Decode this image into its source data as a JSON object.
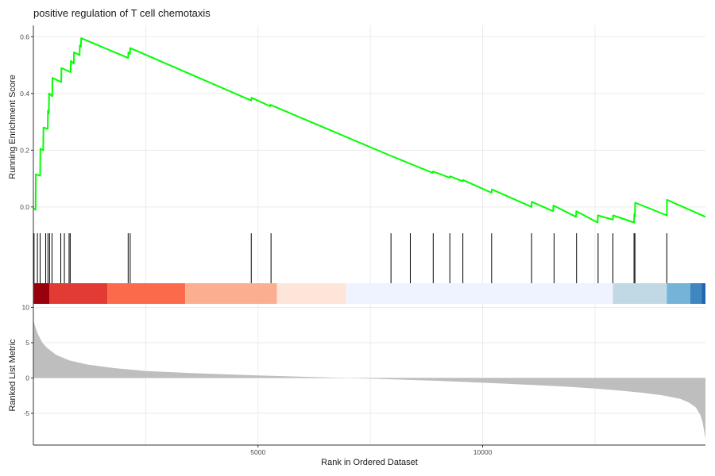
{
  "chart_data": {
    "type": "line",
    "title": "positive regulation of T cell chemotaxis",
    "xlabel": "Rank in Ordered Dataset",
    "x_ticks": [
      5000,
      10000
    ],
    "xlim": [
      0,
      14960
    ],
    "colors": {
      "running_score": "#00ff00",
      "hit_line": "#000000",
      "metric_fill": "#bebebe",
      "grid": "#ebebeb",
      "axis": "#333333"
    },
    "panels": {
      "running_enrichment": {
        "ylabel": "Running Enrichment Score",
        "y_ticks": [
          0.0,
          0.2,
          0.4,
          0.6
        ],
        "y_tick_labels": [
          "0.0",
          "0.2",
          "0.4",
          "0.6"
        ],
        "ylim": [
          -0.09,
          0.64
        ],
        "series": [
          {
            "x": [
              0,
              50,
              55,
              150,
              155,
              220,
              225,
              320,
              325,
              345,
              350,
              420,
              425,
              620,
              625,
              830,
              835,
              900,
              905,
              1030,
              1035,
              1060,
              1065,
              2110,
              2115,
              2150,
              2155,
              4850,
              4855,
              5270,
              5275,
              7960,
              7965,
              8390,
              8395,
              8890,
              8895,
              9270,
              9275,
              9560,
              9565,
              10200,
              10205,
              11090,
              11095,
              11570,
              11575,
              12080,
              12085,
              12560,
              12565,
              12900,
              12905,
              13370,
              13375,
              13390,
              13395,
              14100,
              14105,
              14960
            ],
            "y": [
              -0.005,
              -0.01,
              0.115,
              0.11,
              0.205,
              0.2,
              0.28,
              0.275,
              0.34,
              0.33,
              0.4,
              0.39,
              0.455,
              0.44,
              0.49,
              0.475,
              0.515,
              0.505,
              0.545,
              0.535,
              0.57,
              0.565,
              0.595,
              0.525,
              0.545,
              0.54,
              0.56,
              0.375,
              0.385,
              0.355,
              0.36,
              0.18,
              0.18,
              0.152,
              0.152,
              0.12,
              0.125,
              0.103,
              0.108,
              0.09,
              0.095,
              0.05,
              0.062,
              0.0,
              0.018,
              -0.015,
              0.005,
              -0.035,
              -0.015,
              -0.055,
              -0.03,
              -0.045,
              -0.03,
              -0.055,
              -0.025,
              -0.035,
              0.015,
              -0.03,
              0.025,
              -0.035
            ]
          }
        ]
      },
      "hits": {
        "positions": [
          15,
          90,
          150,
          275,
          325,
          360,
          415,
          610,
          690,
          795,
          820,
          2110,
          2155,
          4850,
          5290,
          7960,
          8390,
          8900,
          9270,
          9560,
          10200,
          11090,
          11590,
          12090,
          12570,
          12900,
          13370,
          13390,
          14100
        ],
        "color_bands": [
          {
            "from": 0,
            "to": 360,
            "color": "#99000d"
          },
          {
            "from": 360,
            "to": 1650,
            "color": "#e13b34"
          },
          {
            "from": 1650,
            "to": 3380,
            "color": "#fb6a4a"
          },
          {
            "from": 3380,
            "to": 5420,
            "color": "#fcae91"
          },
          {
            "from": 5420,
            "to": 6960,
            "color": "#fee5d9"
          },
          {
            "from": 6960,
            "to": 12900,
            "color": "#eff3ff"
          },
          {
            "from": 12900,
            "to": 14100,
            "color": "#c1d9e5"
          },
          {
            "from": 14100,
            "to": 14620,
            "color": "#75b3d8"
          },
          {
            "from": 14620,
            "to": 14880,
            "color": "#3f87c0"
          },
          {
            "from": 14880,
            "to": 14960,
            "color": "#2166ac"
          }
        ]
      },
      "ranked_metric": {
        "ylabel": "Ranked List Metric",
        "y_ticks": [
          -5,
          0,
          5,
          10
        ],
        "y_tick_labels": [
          "-5",
          "0",
          "5",
          "10"
        ],
        "ylim": [
          -9.5,
          10.5
        ],
        "series": [
          {
            "x": [
              0,
              30,
              100,
              200,
              300,
              500,
              800,
              1200,
              1800,
              2500,
              3500,
              5000,
              6500,
              7000,
              7500,
              9000,
              10500,
              11800,
              12500,
              13000,
              13500,
              14000,
              14400,
              14600,
              14750,
              14850,
              14900,
              14930,
              14960
            ],
            "y": [
              8.3,
              7.5,
              6.2,
              5.0,
              4.3,
              3.3,
              2.5,
              1.9,
              1.4,
              1.0,
              0.7,
              0.35,
              0.1,
              0.0,
              -0.1,
              -0.4,
              -0.8,
              -1.2,
              -1.5,
              -1.75,
              -2.05,
              -2.45,
              -2.95,
              -3.5,
              -4.2,
              -5.3,
              -6.4,
              -7.5,
              -8.6
            ]
          }
        ]
      }
    }
  }
}
